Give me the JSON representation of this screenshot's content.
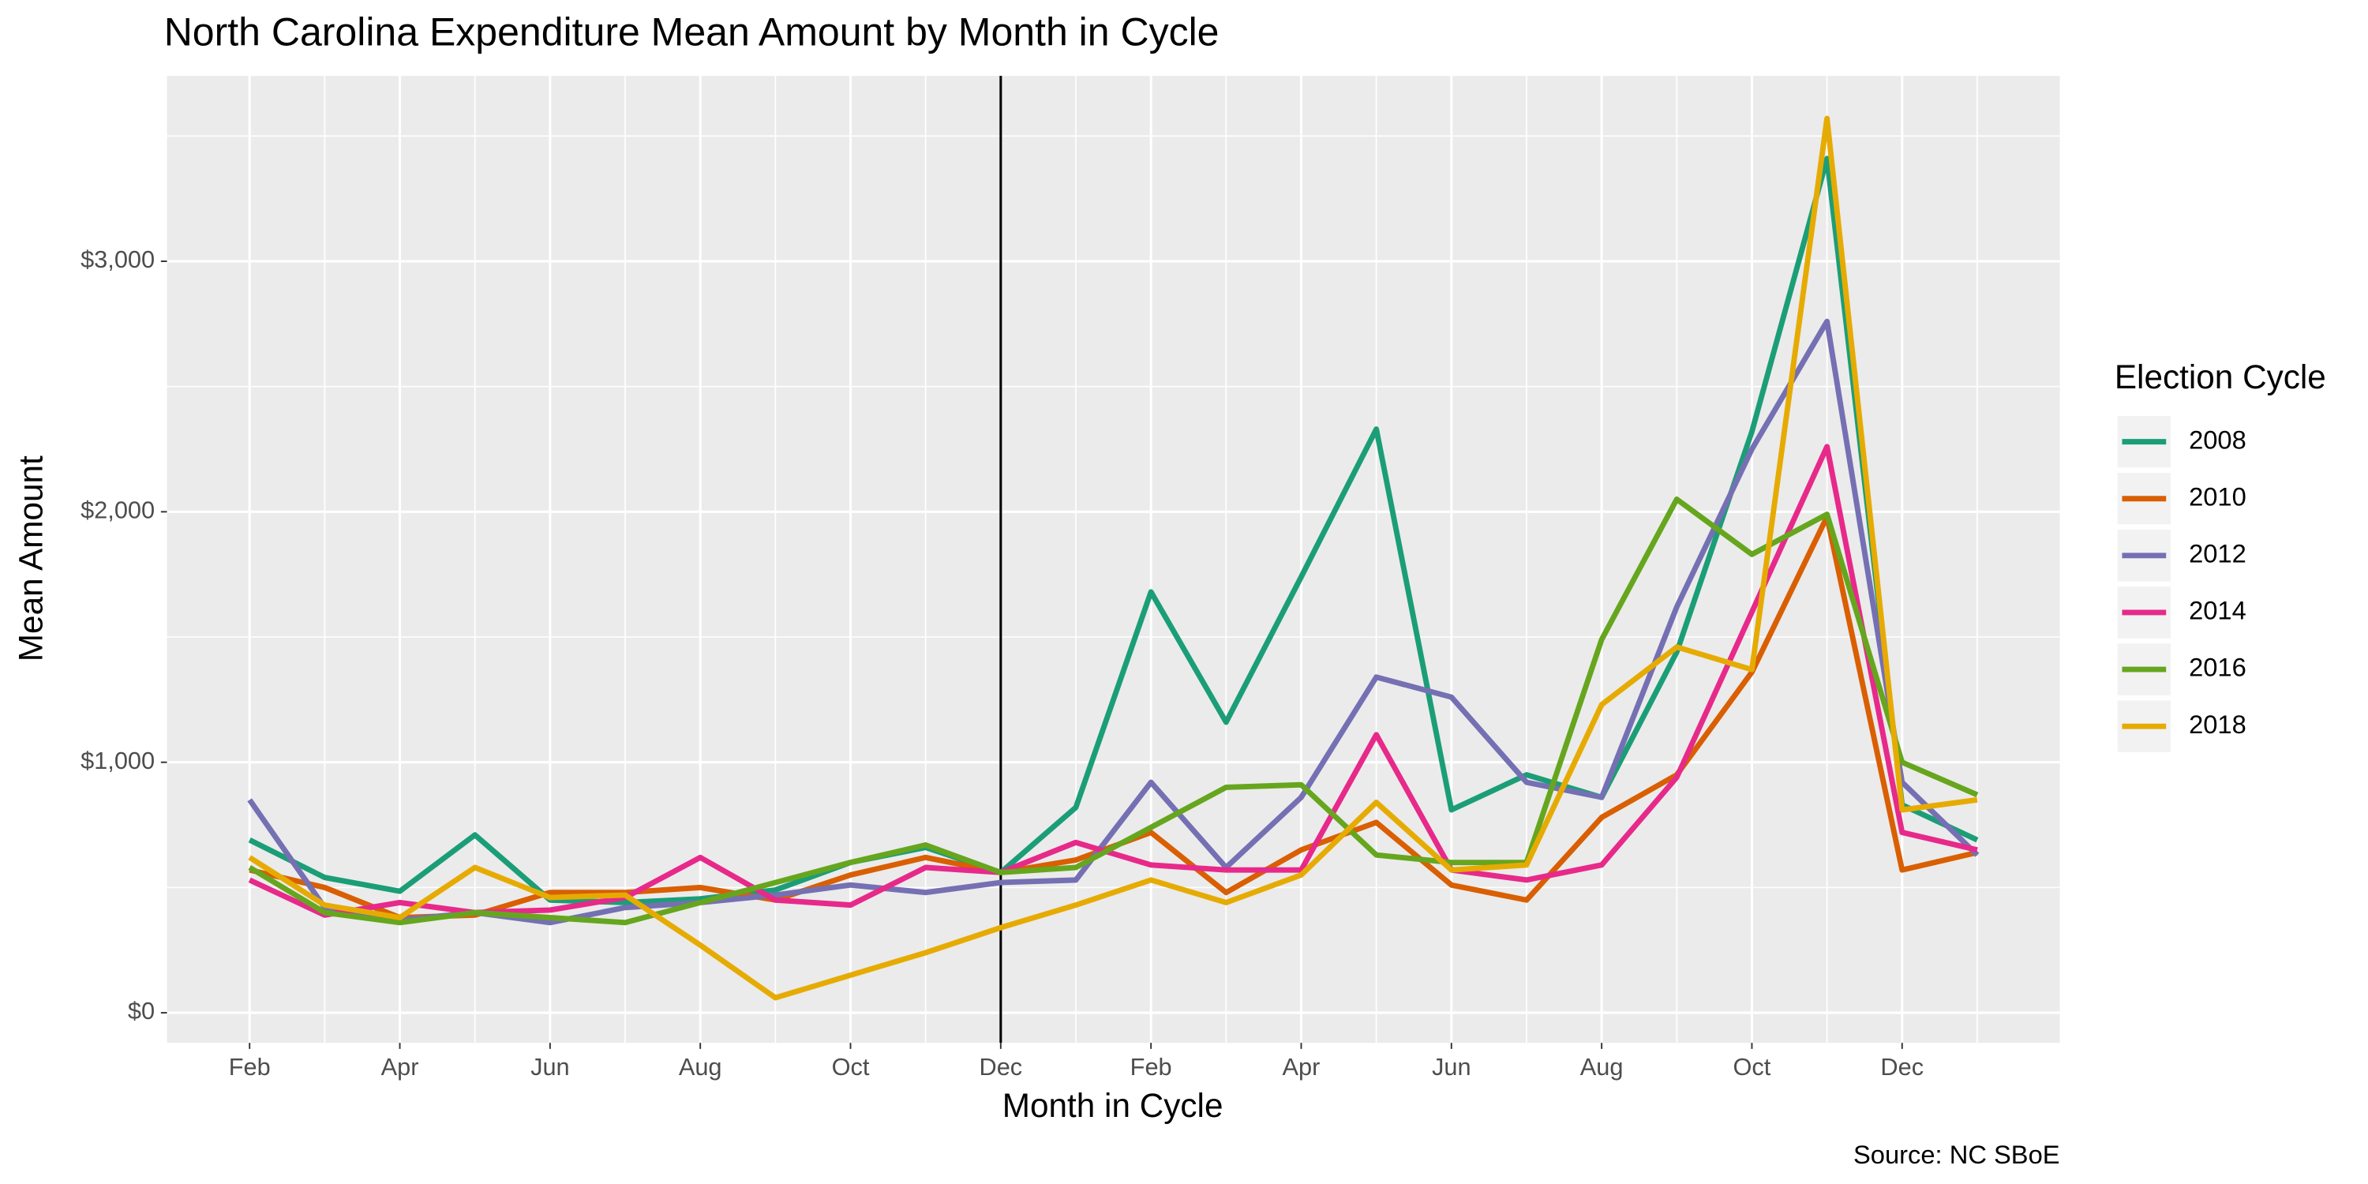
{
  "chart_data": {
    "type": "line",
    "title": "North Carolina Expenditure Mean Amount by Month in Cycle",
    "x_label": "Month in Cycle",
    "y_label": "Mean Amount",
    "caption": "Source: NC SBoE",
    "legend_title": "Election Cycle",
    "legend": "right",
    "grid": true,
    "categories": [
      "Feb",
      null,
      "Apr",
      null,
      "Jun",
      null,
      "Aug",
      null,
      "Oct",
      null,
      "Dec",
      null,
      "Feb",
      null,
      "Apr",
      null,
      "Jun",
      null,
      "Aug",
      null,
      "Oct",
      null,
      "Dec",
      null
    ],
    "ylim": [
      -120,
      3740
    ],
    "yticks": [
      {
        "value": 0,
        "label": "$0"
      },
      {
        "value": 1000,
        "label": "$1,000"
      },
      {
        "value": 2000,
        "label": "$2,000"
      },
      {
        "value": 3000,
        "label": "$3,000"
      }
    ],
    "series": [
      {
        "name": "2008",
        "color": "#1b9e77",
        "values": [
          690,
          540,
          485,
          710,
          450,
          440,
          455,
          490,
          600,
          660,
          560,
          820,
          1680,
          1160,
          1740,
          2330,
          810,
          950,
          860,
          1440,
          2320,
          3410,
          830,
          690
        ]
      },
      {
        "name": "2010",
        "color": "#d95f02",
        "values": [
          570,
          500,
          380,
          390,
          480,
          480,
          500,
          450,
          550,
          620,
          560,
          610,
          720,
          480,
          650,
          760,
          510,
          450,
          780,
          950,
          1360,
          1980,
          570,
          640
        ]
      },
      {
        "name": "2012",
        "color": "#7570b3",
        "values": [
          850,
          420,
          370,
          400,
          360,
          420,
          440,
          470,
          510,
          480,
          520,
          530,
          920,
          580,
          860,
          1340,
          1260,
          920,
          860,
          1620,
          2250,
          2760,
          920,
          630
        ]
      },
      {
        "name": "2014",
        "color": "#e7298a",
        "values": [
          530,
          390,
          440,
          400,
          410,
          460,
          620,
          450,
          430,
          580,
          560,
          680,
          590,
          570,
          570,
          1110,
          570,
          530,
          590,
          940,
          1600,
          2260,
          720,
          650
        ]
      },
      {
        "name": "2016",
        "color": "#66a61e",
        "values": [
          580,
          400,
          360,
          400,
          380,
          360,
          440,
          520,
          600,
          670,
          560,
          580,
          740,
          900,
          910,
          630,
          600,
          600,
          1490,
          2050,
          1830,
          1990,
          1000,
          870
        ]
      },
      {
        "name": "2018",
        "color": "#e6ab02",
        "values": [
          620,
          430,
          380,
          580,
          460,
          470,
          270,
          60,
          150,
          240,
          340,
          430,
          530,
          440,
          550,
          840,
          570,
          590,
          1230,
          1460,
          1370,
          3570,
          810,
          850
        ]
      }
    ]
  }
}
